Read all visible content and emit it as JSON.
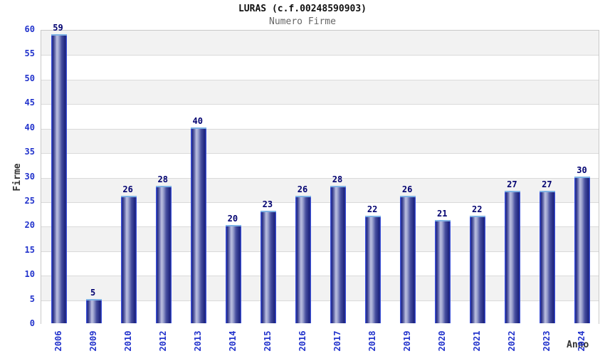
{
  "header": {
    "title": "LURAS (c.f.00248590903)",
    "subtitle": "Numero Firme"
  },
  "chart_data": {
    "type": "bar",
    "title": "LURAS (c.f.00248590903)",
    "subtitle": "Numero Firme",
    "categories": [
      "2006",
      "2009",
      "2010",
      "2012",
      "2013",
      "2014",
      "2015",
      "2016",
      "2017",
      "2018",
      "2019",
      "2020",
      "2021",
      "2022",
      "2023",
      "2024"
    ],
    "values": [
      59,
      5,
      26,
      28,
      40,
      20,
      23,
      26,
      28,
      22,
      26,
      21,
      22,
      27,
      27,
      30
    ],
    "xlabel": "Anno",
    "ylabel": "Firme",
    "ylim": [
      0,
      60
    ],
    "ytick_step": 5,
    "grid": "horizontal-bands-alternating",
    "legend": "none",
    "bar_value_labels": true
  },
  "colors": {
    "bar_dark": "#20267f",
    "bar_light": "#bcc0e0",
    "bar_edge": "#3a4fd8",
    "bar_cap": "#7fb2e5",
    "value_label": "#000070",
    "tick_label": "#2233cc",
    "axis_title": "#333333",
    "band_gray": "#f2f2f2",
    "band_white": "#ffffff",
    "grid_line": "#dadada",
    "plot_border": "#c9c9c9",
    "subtitle_text": "#666666"
  }
}
